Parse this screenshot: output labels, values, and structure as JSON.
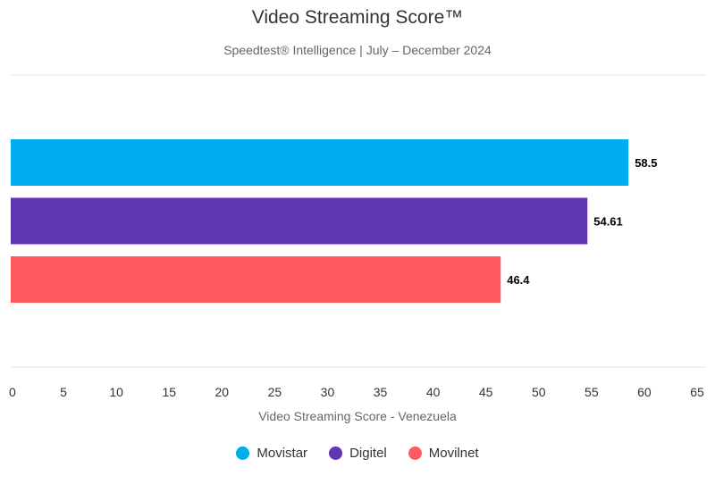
{
  "chart_data": {
    "type": "bar",
    "orientation": "horizontal",
    "title": "Video Streaming Score™",
    "subtitle": "Speedtest® Intelligence | July – December 2024",
    "xlabel": "Video Streaming Score - Venezuela",
    "ylabel": "",
    "xlim": [
      0,
      65
    ],
    "xticks": [
      "0",
      "5",
      "10",
      "15",
      "20",
      "25",
      "30",
      "35",
      "40",
      "45",
      "50",
      "55",
      "60",
      "65"
    ],
    "series": [
      {
        "name": "Movistar",
        "value": 58.5,
        "label": "58.5",
        "color": "#00adef"
      },
      {
        "name": "Digitel",
        "value": 54.61,
        "label": "54.61",
        "color": "#6037b0"
      },
      {
        "name": "Movilnet",
        "value": 46.4,
        "label": "46.4",
        "color": "#ff5a5f"
      }
    ],
    "legend_position": "bottom",
    "grid": false
  }
}
